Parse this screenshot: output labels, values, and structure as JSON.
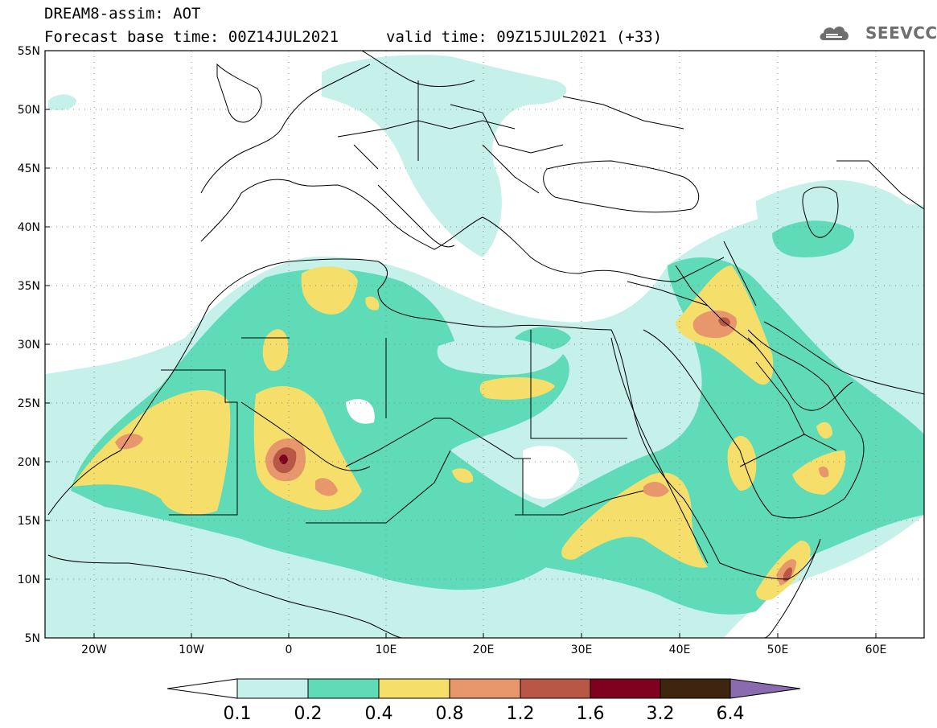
{
  "header": {
    "title": "DREAM8-assim: AOT",
    "base_time": "Forecast base time: 00Z14JUL2021",
    "valid_time": "valid time: 09Z15JUL2021 (+33)",
    "logo_text": "SEEVCCC"
  },
  "axes": {
    "lat_labels": [
      "55N",
      "50N",
      "45N",
      "40N",
      "35N",
      "30N",
      "25N",
      "20N",
      "15N",
      "10N",
      "5N"
    ],
    "lon_labels": [
      "20W",
      "10W",
      "0",
      "10E",
      "20E",
      "30E",
      "40E",
      "50E",
      "60E"
    ]
  },
  "colorbar": {
    "labels": [
      "0.1",
      "0.2",
      "0.4",
      "0.8",
      "1.2",
      "1.6",
      "3.2",
      "6.4"
    ],
    "colors": [
      "#ffffff",
      "#c6f0ea",
      "#5fdcb7",
      "#f5df6a",
      "#e8966b",
      "#b85746",
      "#800020",
      "#3d2510",
      "#8b6bb0"
    ]
  },
  "colors": {
    "aot_low": "#c6f0ea",
    "aot_02": "#5fdcb7",
    "aot_04": "#f5df6a",
    "aot_08": "#e8966b",
    "aot_12": "#b85746",
    "aot_16": "#800020"
  }
}
